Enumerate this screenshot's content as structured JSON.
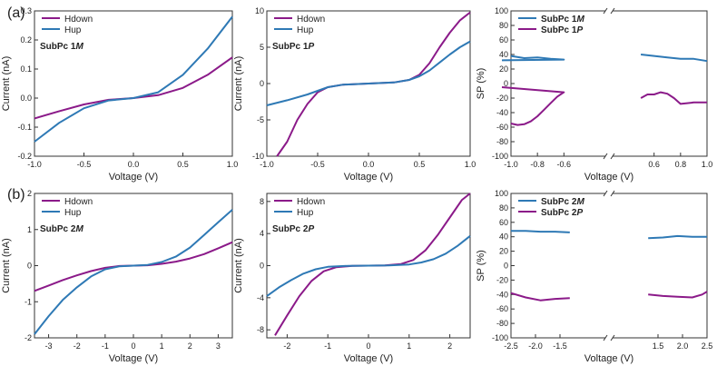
{
  "colors": {
    "hdown": "#8b1a89",
    "hup": "#2e79b5",
    "axis": "#333333",
    "text": "#222222"
  },
  "row_labels": [
    "(a)",
    "(b)"
  ],
  "chart_data": [
    {
      "id": "a1",
      "type": "line",
      "xlabel": "Voltage (V)",
      "ylabel": "Current (nA)",
      "xlim": [
        -1.0,
        1.0
      ],
      "ylim": [
        -0.2,
        0.3
      ],
      "xticks": [
        -1.0,
        -0.5,
        0.0,
        0.5,
        1.0
      ],
      "xtick_labels": [
        "-1.0",
        "-0.5",
        "0.0",
        "0.5",
        "1.0"
      ],
      "yticks": [
        -0.2,
        -0.1,
        0.0,
        0.1,
        0.2,
        0.3
      ],
      "ytick_labels": [
        "-0.2",
        "-0.1",
        "0.0",
        "0.1",
        "0.2",
        "0.3"
      ],
      "legend": "top-left",
      "annotation": {
        "text": "SubPc 1",
        "suffix": "M"
      },
      "series": [
        {
          "name": "Hdown",
          "color": "#8b1a89",
          "x": [
            -1.0,
            -0.75,
            -0.5,
            -0.25,
            0.0,
            0.25,
            0.5,
            0.75,
            1.0
          ],
          "y": [
            -0.07,
            -0.045,
            -0.022,
            -0.006,
            0.0,
            0.01,
            0.035,
            0.08,
            0.14
          ]
        },
        {
          "name": "Hup",
          "color": "#2e79b5",
          "x": [
            -1.0,
            -0.75,
            -0.5,
            -0.25,
            0.0,
            0.25,
            0.5,
            0.75,
            1.0
          ],
          "y": [
            -0.15,
            -0.085,
            -0.035,
            -0.008,
            0.0,
            0.02,
            0.08,
            0.17,
            0.28
          ]
        }
      ]
    },
    {
      "id": "a2",
      "type": "line",
      "xlabel": "Voltage (V)",
      "ylabel": "Current (nA)",
      "xlim": [
        -1.0,
        1.0
      ],
      "ylim": [
        -10,
        10
      ],
      "xticks": [
        -1.0,
        -0.5,
        0.0,
        0.5,
        1.0
      ],
      "xtick_labels": [
        "-1.0",
        "-0.5",
        "0.0",
        "0.5",
        "1.0"
      ],
      "yticks": [
        -10,
        -5,
        0,
        5,
        10
      ],
      "ytick_labels": [
        "-10",
        "-5",
        "0",
        "5",
        "10"
      ],
      "legend": "top-left",
      "annotation": {
        "text": "SubPc 1",
        "suffix": "P"
      },
      "series": [
        {
          "name": "Hdown",
          "color": "#8b1a89",
          "x": [
            -0.9,
            -0.8,
            -0.7,
            -0.6,
            -0.5,
            -0.4,
            -0.25,
            0.0,
            0.25,
            0.4,
            0.5,
            0.6,
            0.7,
            0.8,
            0.9,
            1.0
          ],
          "y": [
            -10.0,
            -8.0,
            -5.0,
            -2.8,
            -1.2,
            -0.5,
            -0.15,
            0.0,
            0.15,
            0.5,
            1.2,
            2.8,
            5.0,
            7.0,
            8.7,
            9.8
          ]
        },
        {
          "name": "Hup",
          "color": "#2e79b5",
          "x": [
            -1.0,
            -0.8,
            -0.6,
            -0.5,
            -0.4,
            -0.25,
            0.0,
            0.25,
            0.4,
            0.5,
            0.6,
            0.7,
            0.8,
            0.9,
            1.0
          ],
          "y": [
            -3.0,
            -2.3,
            -1.5,
            -1.0,
            -0.5,
            -0.15,
            0.0,
            0.15,
            0.5,
            1.0,
            1.8,
            2.9,
            4.0,
            5.0,
            5.8
          ]
        }
      ]
    },
    {
      "id": "a3",
      "type": "line",
      "xlabel": "Voltage (V)",
      "ylabel": "SP (%)",
      "xlim": [
        -1.0,
        1.0
      ],
      "ylim": [
        -100,
        100
      ],
      "axis_break": "between -0.6 and 0.6",
      "xticks": [
        -1.0,
        -0.8,
        -0.6,
        0.6,
        0.8,
        1.0
      ],
      "xtick_labels": [
        "-1.0",
        "-0.8",
        "-0.6",
        "0.6",
        "0.8",
        "1.0"
      ],
      "yticks": [
        -100,
        -80,
        -60,
        -40,
        -20,
        0,
        20,
        40,
        60,
        80,
        100
      ],
      "ytick_labels": [
        "-100",
        "-80",
        "-60",
        "-40",
        "-20",
        "0",
        "20",
        "40",
        "60",
        "80",
        "100"
      ],
      "legend": "top-left",
      "series": [
        {
          "name": "SubPc 1",
          "suffix": "M",
          "color": "#2e79b5",
          "x": [
            -1.0,
            -0.9,
            -0.8,
            -0.7,
            -0.6,
            -0.55,
            null,
            0.5,
            0.6,
            0.7,
            0.8,
            0.9,
            1.0
          ],
          "y": [
            38,
            35,
            36,
            34,
            33,
            32,
            null,
            40,
            38,
            36,
            34,
            34,
            31
          ]
        },
        {
          "name": "SubPc 1",
          "suffix": "P",
          "color": "#8b1a89",
          "x": [
            -1.0,
            -0.95,
            -0.9,
            -0.85,
            -0.8,
            -0.75,
            -0.7,
            -0.65,
            -0.6,
            -0.55,
            null,
            0.5,
            0.55,
            0.6,
            0.65,
            0.7,
            0.75,
            0.8,
            0.85,
            0.9,
            1.0
          ],
          "y": [
            -55,
            -57,
            -56,
            -52,
            -45,
            -36,
            -27,
            -18,
            -12,
            -5,
            null,
            -20,
            -15,
            -15,
            -12,
            -14,
            -20,
            -28,
            -27,
            -26,
            -26
          ]
        }
      ]
    },
    {
      "id": "b1",
      "type": "line",
      "xlabel": "Voltage (V)",
      "ylabel": "Current (nA)",
      "xlim": [
        -3.5,
        3.5
      ],
      "ylim": [
        -2,
        2
      ],
      "xticks": [
        -3,
        -2,
        -1,
        0,
        1,
        2,
        3
      ],
      "xtick_labels": [
        "-3",
        "-2",
        "-1",
        "0",
        "1",
        "2",
        "3"
      ],
      "yticks": [
        -2,
        -1,
        0,
        1,
        2
      ],
      "ytick_labels": [
        "-2",
        "-1",
        "0",
        "1",
        "2"
      ],
      "legend": "top-left",
      "annotation": {
        "text": "SubPc 2",
        "suffix": "M"
      },
      "series": [
        {
          "name": "Hdown",
          "color": "#8b1a89",
          "x": [
            -3.5,
            -3.0,
            -2.5,
            -2.0,
            -1.5,
            -1.0,
            -0.5,
            0.0,
            0.5,
            1.0,
            1.5,
            2.0,
            2.5,
            3.0,
            3.5
          ],
          "y": [
            -0.7,
            -0.55,
            -0.4,
            -0.27,
            -0.15,
            -0.06,
            -0.01,
            0.0,
            0.01,
            0.05,
            0.11,
            0.2,
            0.32,
            0.48,
            0.65
          ]
        },
        {
          "name": "Hup",
          "color": "#2e79b5",
          "x": [
            -3.5,
            -3.0,
            -2.5,
            -2.0,
            -1.5,
            -1.0,
            -0.5,
            0.0,
            0.5,
            1.0,
            1.5,
            2.0,
            2.5,
            3.0,
            3.5
          ],
          "y": [
            -1.9,
            -1.4,
            -0.95,
            -0.6,
            -0.3,
            -0.1,
            -0.02,
            0.0,
            0.02,
            0.1,
            0.25,
            0.5,
            0.85,
            1.2,
            1.55
          ]
        }
      ]
    },
    {
      "id": "b2",
      "type": "line",
      "xlabel": "Voltage (V)",
      "ylabel": "Current (nA)",
      "xlim": [
        -2.5,
        2.5
      ],
      "ylim": [
        -9,
        9
      ],
      "xticks": [
        -2,
        -1,
        0,
        1,
        2
      ],
      "xtick_labels": [
        "-2",
        "-1",
        "0",
        "1",
        "2"
      ],
      "yticks": [
        -8,
        -4,
        0,
        4,
        8
      ],
      "ytick_labels": [
        "-8",
        "-4",
        "0",
        "4",
        "8"
      ],
      "legend": "top-left",
      "annotation": {
        "text": "SubPc 2",
        "suffix": "P"
      },
      "series": [
        {
          "name": "Hdown",
          "color": "#8b1a89",
          "x": [
            -2.3,
            -2.0,
            -1.7,
            -1.4,
            -1.1,
            -0.8,
            -0.4,
            0.0,
            0.4,
            0.8,
            1.1,
            1.4,
            1.7,
            2.0,
            2.3,
            2.5
          ],
          "y": [
            -8.7,
            -6.2,
            -3.8,
            -1.9,
            -0.7,
            -0.2,
            -0.02,
            0.0,
            0.02,
            0.2,
            0.7,
            1.9,
            3.8,
            6.0,
            8.2,
            9.0
          ]
        },
        {
          "name": "Hup",
          "color": "#2e79b5",
          "x": [
            -2.5,
            -2.2,
            -1.9,
            -1.6,
            -1.3,
            -1.0,
            -0.5,
            0.0,
            0.5,
            1.0,
            1.3,
            1.6,
            1.9,
            2.2,
            2.5
          ],
          "y": [
            -3.8,
            -2.7,
            -1.8,
            -1.0,
            -0.45,
            -0.15,
            -0.02,
            0.0,
            0.02,
            0.15,
            0.4,
            0.8,
            1.5,
            2.5,
            3.7
          ]
        }
      ]
    },
    {
      "id": "b3",
      "type": "line",
      "xlabel": "Voltage (V)",
      "ylabel": "SP (%)",
      "xlim": [
        -2.5,
        2.5
      ],
      "ylim": [
        -100,
        100
      ],
      "axis_break": "between -1.3 and 1.3",
      "xticks": [
        -2.5,
        -2.0,
        -1.5,
        1.5,
        2.0,
        2.5
      ],
      "xtick_labels": [
        "-2.5",
        "-2.0",
        "-1.5",
        "1.5",
        "2.0",
        "2.5"
      ],
      "yticks": [
        -100,
        -80,
        -60,
        -40,
        -20,
        0,
        20,
        40,
        60,
        80,
        100
      ],
      "ytick_labels": [
        "-100",
        "-80",
        "-60",
        "-40",
        "-20",
        "0",
        "20",
        "40",
        "60",
        "80",
        "100"
      ],
      "legend": "top-left",
      "series": [
        {
          "name": "SubPc 2",
          "suffix": "M",
          "color": "#2e79b5",
          "x": [
            -2.5,
            -2.2,
            -1.9,
            -1.6,
            -1.3,
            null,
            1.3,
            1.6,
            1.9,
            2.2,
            2.5
          ],
          "y": [
            48,
            48,
            47,
            47,
            46,
            null,
            38,
            39,
            41,
            40,
            40
          ]
        },
        {
          "name": "SubPc 2",
          "suffix": "P",
          "color": "#8b1a89",
          "x": [
            -2.5,
            -2.2,
            -1.9,
            -1.6,
            -1.3,
            null,
            1.3,
            1.6,
            1.9,
            2.2,
            2.4,
            2.5
          ],
          "y": [
            -38,
            -44,
            -48,
            -46,
            -45,
            null,
            -40,
            -42,
            -43,
            -44,
            -40,
            -36
          ]
        }
      ]
    }
  ]
}
